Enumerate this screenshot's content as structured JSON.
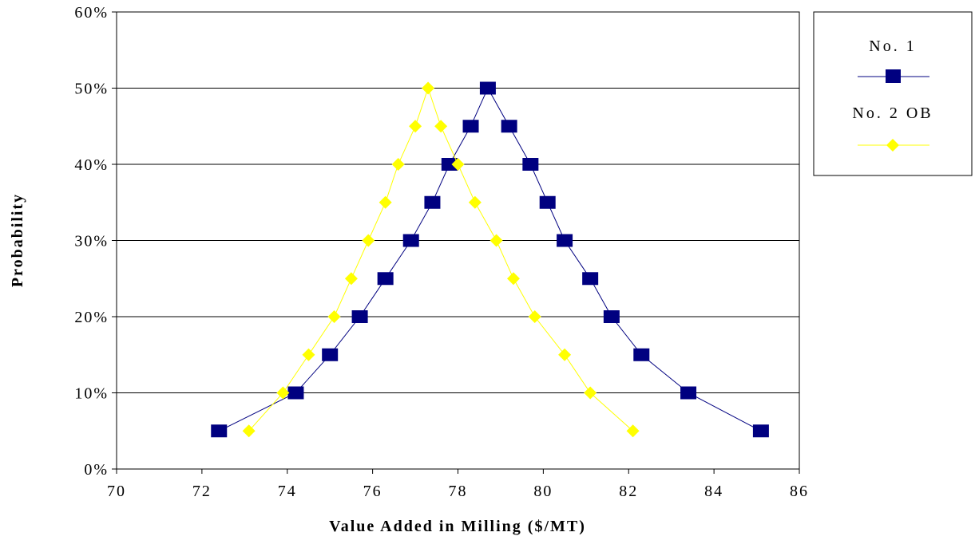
{
  "chart_data": {
    "type": "line",
    "title": "",
    "xlabel": "Value Added in Milling ($/MT)",
    "ylabel": "Probability",
    "xlim": [
      70,
      86
    ],
    "ylim": [
      0,
      60
    ],
    "x_ticks": [
      "70",
      "72",
      "74",
      "76",
      "78",
      "80",
      "82",
      "84",
      "86"
    ],
    "y_ticks": [
      "0%",
      "10%",
      "20%",
      "30%",
      "40%",
      "50%",
      "60%"
    ],
    "grid": "horizontal",
    "legend_position": "right",
    "series": [
      {
        "name": "No. 1",
        "color": "#000080",
        "marker": "square",
        "points": [
          [
            72.4,
            5
          ],
          [
            74.2,
            10
          ],
          [
            75.0,
            15
          ],
          [
            75.7,
            20
          ],
          [
            76.3,
            25
          ],
          [
            76.9,
            30
          ],
          [
            77.4,
            35
          ],
          [
            77.8,
            40
          ],
          [
            78.3,
            45
          ],
          [
            78.7,
            50
          ],
          [
            79.2,
            45
          ],
          [
            79.7,
            40
          ],
          [
            80.1,
            35
          ],
          [
            80.5,
            30
          ],
          [
            81.1,
            25
          ],
          [
            81.6,
            20
          ],
          [
            82.3,
            15
          ],
          [
            83.4,
            10
          ],
          [
            85.1,
            5
          ]
        ]
      },
      {
        "name": "No. 2 OB",
        "color": "#ffff00",
        "marker": "diamond",
        "points": [
          [
            73.1,
            5
          ],
          [
            73.9,
            10
          ],
          [
            74.5,
            15
          ],
          [
            75.1,
            20
          ],
          [
            75.5,
            25
          ],
          [
            75.9,
            30
          ],
          [
            76.3,
            35
          ],
          [
            76.6,
            40
          ],
          [
            77.0,
            45
          ],
          [
            77.3,
            50
          ],
          [
            77.6,
            45
          ],
          [
            78.0,
            40
          ],
          [
            78.4,
            35
          ],
          [
            78.9,
            30
          ],
          [
            79.3,
            25
          ],
          [
            79.8,
            20
          ],
          [
            80.5,
            15
          ],
          [
            81.1,
            10
          ],
          [
            82.1,
            5
          ]
        ]
      }
    ]
  }
}
